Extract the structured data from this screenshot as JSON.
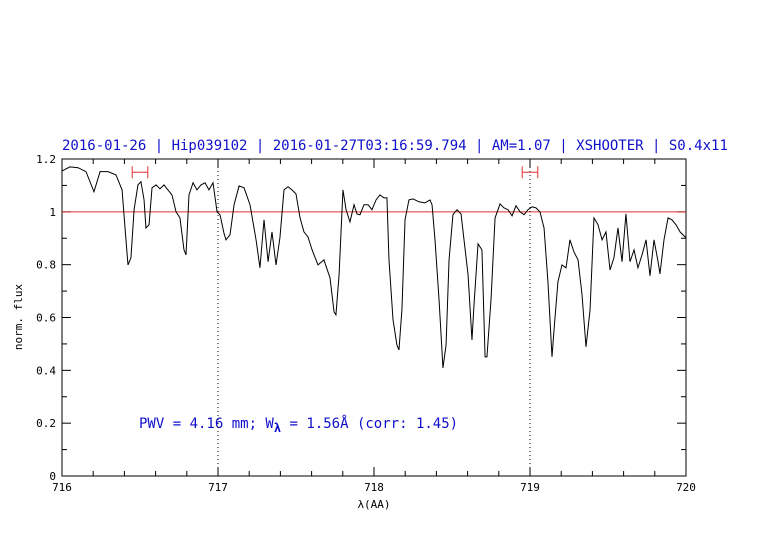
{
  "chart_data": {
    "type": "line",
    "title": "2016-01-26 | Hip039102 | 2016-01-27T03:16:59.794 | AM=1.07 | XSHOOTER | S0.4x11",
    "x_label": "λ(AA)",
    "y_label": "norm. flux",
    "annotation": [
      "PWV = 4.16 mm; W",
      "λ",
      " = 1.56Å (corr: 1.45)"
    ],
    "xlim": [
      716,
      720
    ],
    "ylim": [
      0,
      1.2
    ],
    "xticks": [
      716,
      717,
      718,
      719,
      720
    ],
    "yticks": [
      0,
      0.2,
      0.4,
      0.6,
      0.8,
      1,
      1.2
    ],
    "xminorticks": [
      716.2,
      716.4,
      716.6,
      716.8,
      717.2,
      717.4,
      717.6,
      717.8,
      718.2,
      718.4,
      718.6,
      718.8,
      719.2,
      719.4,
      719.6,
      719.8
    ],
    "yminorticks": [
      0.1,
      0.3,
      0.5,
      0.7,
      0.9,
      1.1
    ],
    "hline": {
      "value": 1,
      "color": "#e03030"
    },
    "vlines": [
      717,
      719
    ],
    "ranges": {
      "color": "#e03030",
      "y": 1.15,
      "spans": [
        [
          716.45,
          716.55
        ],
        [
          718.95,
          719.05
        ]
      ]
    },
    "series": [
      {
        "name": "flux",
        "color": "#000000",
        "x": [
          716,
          716.051,
          716.103,
          716.154,
          716.205,
          716.244,
          716.295,
          716.346,
          716.385,
          716.41,
          716.423,
          716.442,
          716.462,
          716.487,
          716.506,
          716.526,
          716.538,
          716.558,
          716.577,
          716.603,
          716.628,
          716.654,
          716.679,
          716.705,
          716.731,
          716.756,
          716.782,
          716.795,
          716.814,
          716.84,
          716.865,
          716.891,
          716.917,
          716.942,
          716.968,
          716.994,
          717.013,
          717.038,
          717.051,
          717.077,
          717.103,
          717.135,
          717.167,
          717.205,
          717.244,
          717.269,
          717.295,
          717.321,
          717.346,
          717.372,
          717.397,
          717.423,
          717.449,
          717.474,
          717.5,
          717.526,
          717.551,
          717.577,
          717.603,
          717.641,
          717.679,
          717.718,
          717.744,
          717.756,
          717.776,
          717.801,
          717.821,
          717.846,
          717.872,
          717.891,
          717.91,
          717.936,
          717.962,
          717.987,
          718.013,
          718.038,
          718.064,
          718.083,
          718.096,
          718.122,
          718.147,
          718.16,
          718.179,
          718.199,
          718.224,
          718.25,
          718.288,
          718.327,
          718.359,
          718.372,
          718.391,
          718.417,
          718.442,
          718.462,
          718.481,
          718.506,
          718.532,
          718.558,
          718.577,
          718.603,
          718.628,
          718.641,
          718.667,
          718.692,
          718.712,
          718.724,
          718.75,
          718.776,
          718.808,
          718.833,
          718.859,
          718.885,
          718.91,
          718.936,
          718.962,
          718.987,
          719.013,
          719.038,
          719.064,
          719.09,
          719.115,
          719.141,
          719.154,
          719.179,
          719.205,
          719.231,
          719.256,
          719.282,
          719.308,
          719.333,
          719.359,
          719.385,
          719.41,
          719.436,
          719.462,
          719.487,
          719.513,
          719.538,
          719.564,
          719.59,
          719.615,
          719.641,
          719.667,
          719.692,
          719.718,
          719.744,
          719.769,
          719.795,
          719.821,
          719.833,
          719.859,
          719.885,
          719.91,
          719.936,
          719.962,
          720
        ],
        "values": [
          1.155,
          1.17,
          1.167,
          1.152,
          1.076,
          1.152,
          1.152,
          1.14,
          1.083,
          0.894,
          0.799,
          0.826,
          1.008,
          1.102,
          1.114,
          1.045,
          0.939,
          0.951,
          1.091,
          1.102,
          1.087,
          1.102,
          1.083,
          1.064,
          1.0,
          0.977,
          0.856,
          0.837,
          1.064,
          1.11,
          1.083,
          1.102,
          1.11,
          1.083,
          1.11,
          1.0,
          0.989,
          0.92,
          0.894,
          0.913,
          1.027,
          1.098,
          1.091,
          1.027,
          0.894,
          0.788,
          0.97,
          0.811,
          0.924,
          0.799,
          0.902,
          1.083,
          1.095,
          1.083,
          1.068,
          0.977,
          0.924,
          0.905,
          0.856,
          0.799,
          0.818,
          0.75,
          0.621,
          0.61,
          0.761,
          1.083,
          1.008,
          0.962,
          1.027,
          0.992,
          0.989,
          1.027,
          1.027,
          1.008,
          1.045,
          1.064,
          1.053,
          1.053,
          0.818,
          0.591,
          0.496,
          0.477,
          0.629,
          0.97,
          1.045,
          1.049,
          1.038,
          1.034,
          1.045,
          1.027,
          0.894,
          0.667,
          0.409,
          0.496,
          0.818,
          0.989,
          1.008,
          0.992,
          0.894,
          0.761,
          0.515,
          0.648,
          0.879,
          0.856,
          0.451,
          0.451,
          0.667,
          0.977,
          1.03,
          1.015,
          1.008,
          0.985,
          1.023,
          1.0,
          0.989,
          1.008,
          1.019,
          1.015,
          1.0,
          0.939,
          0.735,
          0.451,
          0.553,
          0.735,
          0.799,
          0.788,
          0.894,
          0.848,
          0.818,
          0.689,
          0.489,
          0.629,
          0.977,
          0.951,
          0.894,
          0.924,
          0.78,
          0.826,
          0.939,
          0.811,
          0.992,
          0.811,
          0.856,
          0.788,
          0.837,
          0.894,
          0.758,
          0.894,
          0.811,
          0.765,
          0.894,
          0.977,
          0.97,
          0.951,
          0.924,
          0.902
        ]
      }
    ]
  }
}
